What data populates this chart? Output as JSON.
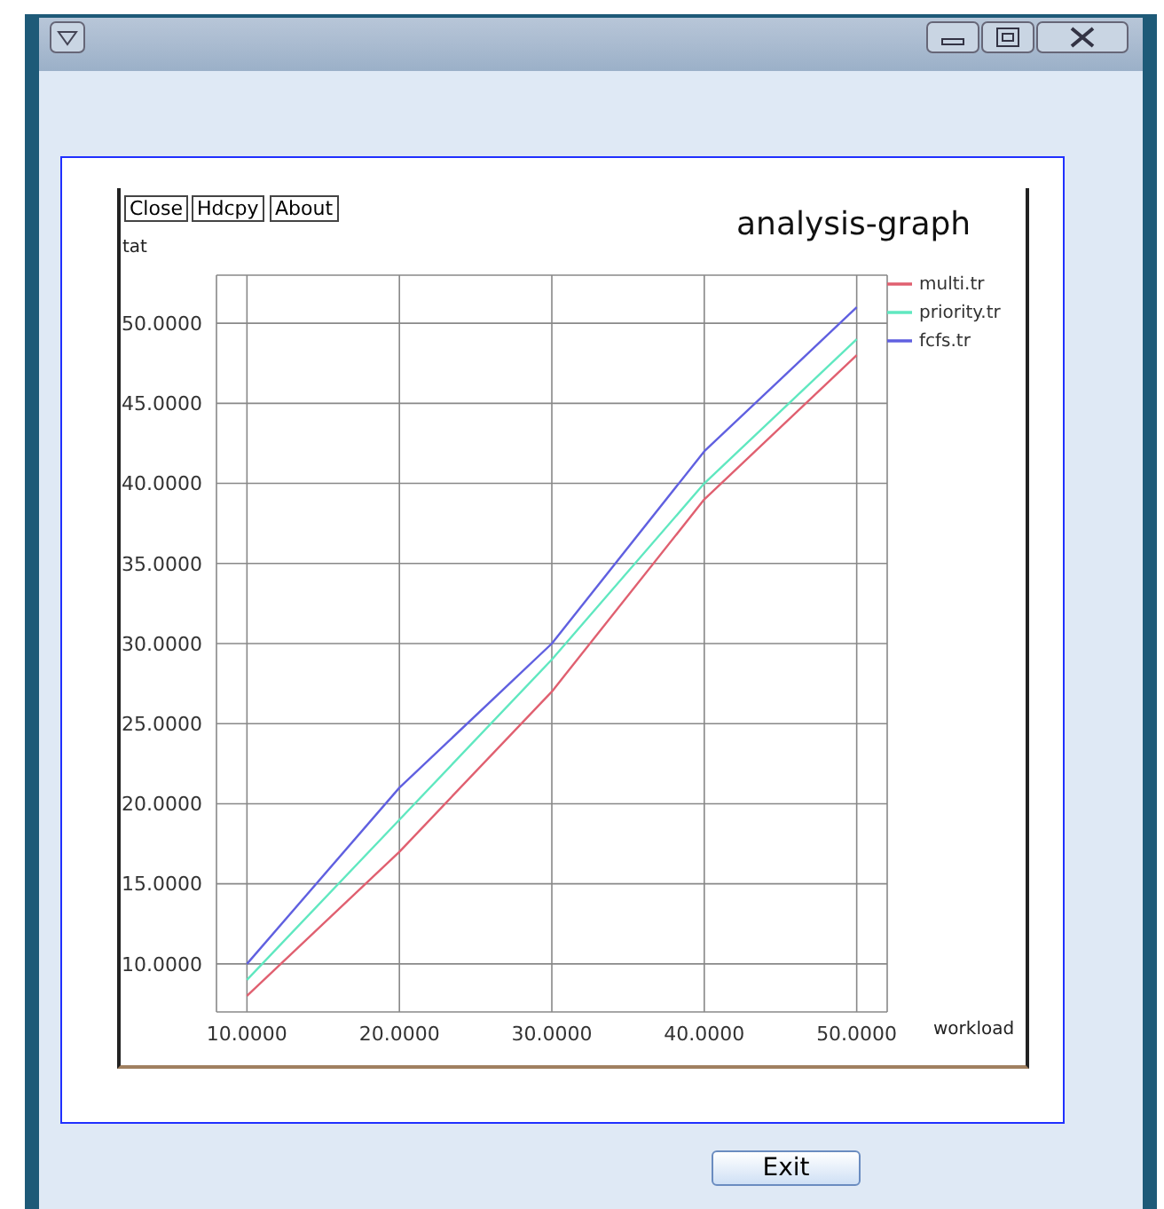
{
  "chart_data": {
    "type": "line",
    "title": "analysis-graph",
    "xlabel": "workload",
    "ylabel": "tat",
    "annotations": [
      "Close",
      "Hdcpy",
      "About",
      "Exit"
    ],
    "x": [
      10,
      20,
      30,
      40,
      45,
      50
    ],
    "series": [
      {
        "name": "multi.tr",
        "color": "#e06070",
        "values": [
          8,
          17,
          27,
          39,
          43.5,
          48
        ]
      },
      {
        "name": "priority.tr",
        "color": "#60e8c0",
        "values": [
          9,
          19,
          29,
          40,
          44.5,
          49
        ]
      },
      {
        "name": "fcfs.tr",
        "color": "#6060e0",
        "values": [
          10,
          21,
          30,
          42,
          46.5,
          51
        ]
      }
    ],
    "xlim": [
      8,
      52
    ],
    "xticks": [
      {
        "value": 10,
        "label": "10.0000"
      },
      {
        "value": 20,
        "label": "20.0000"
      },
      {
        "value": 30,
        "label": "30.0000"
      },
      {
        "value": 40,
        "label": "40.0000"
      },
      {
        "value": 50,
        "label": "50.0000"
      }
    ],
    "ylim": [
      7,
      53
    ],
    "yticks": [
      {
        "value": 10,
        "label": "10.0000"
      },
      {
        "value": 15,
        "label": "15.0000"
      },
      {
        "value": 20,
        "label": "20.0000"
      },
      {
        "value": 25,
        "label": "25.0000"
      },
      {
        "value": 30,
        "label": "30.0000"
      },
      {
        "value": 35,
        "label": "35.0000"
      },
      {
        "value": 40,
        "label": "40.0000"
      },
      {
        "value": 45,
        "label": "45.0000"
      },
      {
        "value": 50,
        "label": "50.0000"
      }
    ],
    "grid": true,
    "legend": "top right",
    "marker": "none",
    "line_style": "solid"
  }
}
